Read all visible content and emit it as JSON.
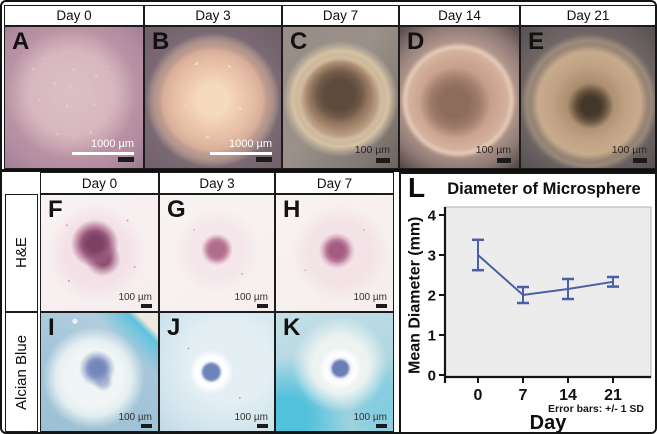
{
  "colors": {
    "accent_line": "#4a5fa8",
    "plot_bg": "#ececec",
    "frame": "#141414"
  },
  "top_row": {
    "headers": [
      "Day 0",
      "Day 3",
      "Day 7",
      "Day 14",
      "Day 21"
    ],
    "panels": [
      {
        "letter": "A",
        "scale_label": "1000 µm"
      },
      {
        "letter": "B",
        "scale_label": "1000 µm"
      },
      {
        "letter": "C",
        "scale_label": "100 µm"
      },
      {
        "letter": "D",
        "scale_label": "100 µm"
      },
      {
        "letter": "E",
        "scale_label": "100 µm"
      }
    ]
  },
  "bottom_grid": {
    "col_headers": [
      "Day 0",
      "Day 3",
      "Day 7"
    ],
    "row_labels": [
      "H&E",
      "Alcian Blue"
    ],
    "rows": [
      {
        "stain": "H&E",
        "panels": [
          {
            "letter": "F",
            "scale_label": "100 µm"
          },
          {
            "letter": "G",
            "scale_label": "100 µm"
          },
          {
            "letter": "H",
            "scale_label": "100 µm"
          }
        ]
      },
      {
        "stain": "Alcian Blue",
        "panels": [
          {
            "letter": "I",
            "scale_label": "100 µm"
          },
          {
            "letter": "J",
            "scale_label": "100 µm"
          },
          {
            "letter": "K",
            "scale_label": "100 µm"
          }
        ]
      }
    ]
  },
  "chart_panel": {
    "letter": "L"
  },
  "chart_data": {
    "type": "line",
    "title": "Diameter of Microsphere",
    "xlabel": "Day",
    "ylabel": "Mean Diameter (mm)",
    "categories": [
      "0",
      "7",
      "14",
      "21"
    ],
    "series": [
      {
        "name": "Mean diameter (mm)",
        "values": [
          3.0,
          2.0,
          2.15,
          2.33
        ],
        "sd": [
          0.38,
          0.2,
          0.25,
          0.12
        ]
      }
    ],
    "ylim": [
      0,
      4
    ],
    "yticks": [
      0,
      1,
      2,
      3,
      4
    ],
    "grid": false,
    "legend": false,
    "note": "Error bars: +/- 1 SD",
    "line_color": "#4a5fa8",
    "plot_bg": "#ececec"
  }
}
